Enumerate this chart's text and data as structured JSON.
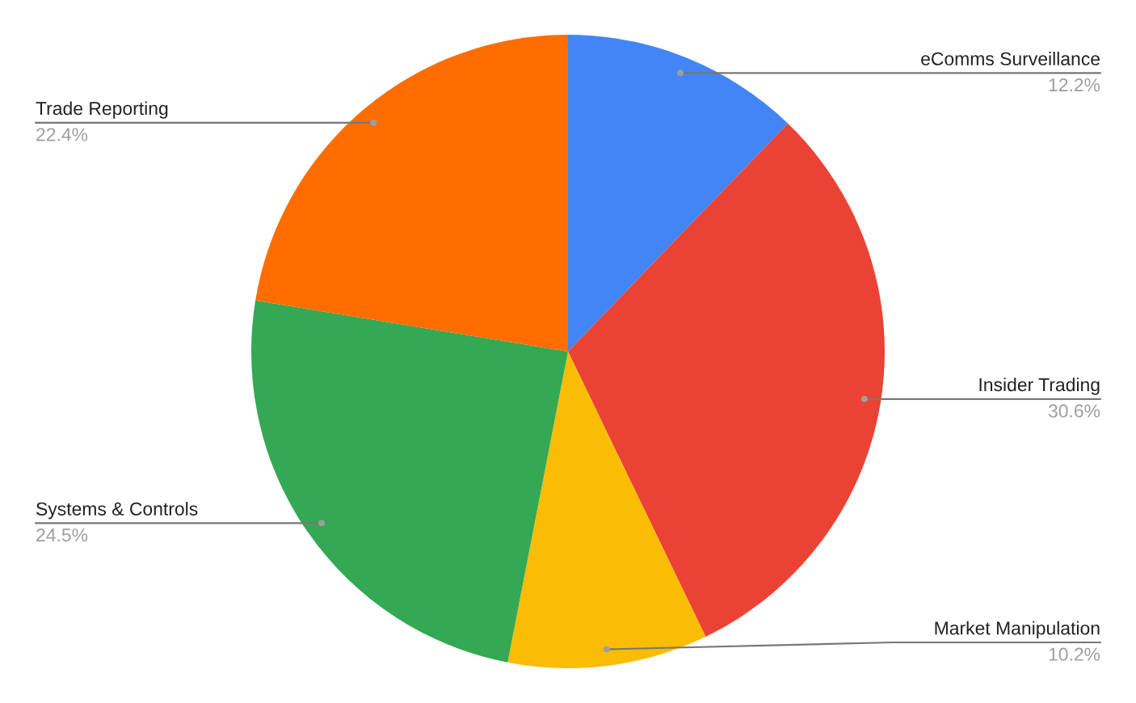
{
  "chart_data": {
    "type": "pie",
    "categories": [
      "eComms Surveillance",
      "Insider Trading",
      "Market Manipulation",
      "Systems & Controls",
      "Trade Reporting"
    ],
    "values": [
      12.2,
      30.6,
      10.2,
      24.5,
      22.4
    ],
    "colors": [
      "#4285f4",
      "#ea4335",
      "#fbbc04",
      "#34a853",
      "#ff6d01"
    ],
    "value_labels": [
      "12.2%",
      "30.6%",
      "10.2%",
      "24.5%",
      "22.4%"
    ],
    "legend": false
  }
}
